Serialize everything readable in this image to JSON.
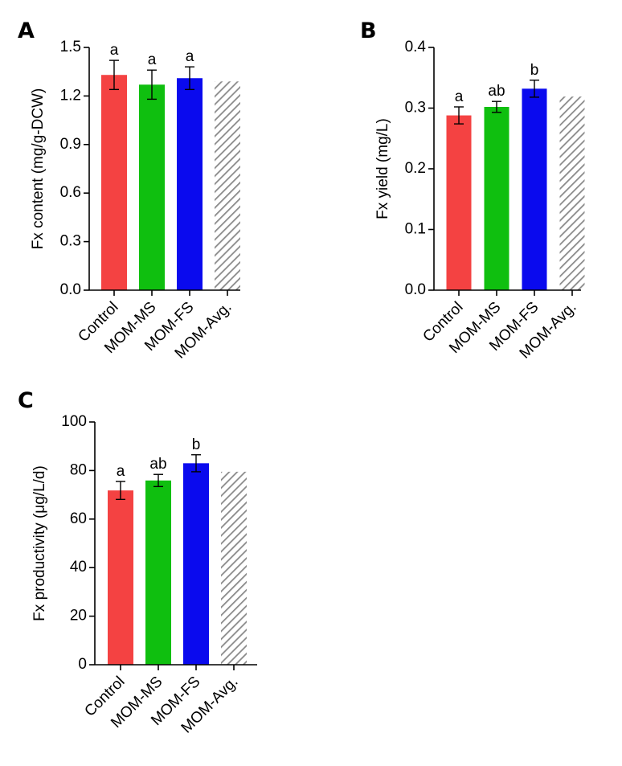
{
  "colors": {
    "control": "#f44242",
    "mom_ms": "#0fbf0f",
    "mom_fs": "#0a0aee",
    "mom_avg_hatch": "#8a8a8a",
    "axis": "#000000"
  },
  "chart_data": [
    {
      "panel": "A",
      "type": "bar",
      "ylabel": "Fx content (mg/g-DCW)",
      "xlabel": "",
      "ylim": [
        0,
        1.5
      ],
      "yticks": [
        "0.0",
        "0.3",
        "0.6",
        "0.9",
        "1.2",
        "1.5"
      ],
      "categories": [
        "Control",
        "MOM-MS",
        "MOM-FS",
        "MOM-Avg."
      ],
      "values": [
        1.33,
        1.27,
        1.31,
        1.29
      ],
      "errors": [
        0.09,
        0.09,
        0.07,
        null
      ],
      "significance": [
        "a",
        "a",
        "a",
        ""
      ],
      "hatched": [
        false,
        false,
        false,
        true
      ]
    },
    {
      "panel": "B",
      "type": "bar",
      "ylabel": "Fx yield (mg/L)",
      "xlabel": "",
      "ylim": [
        0,
        0.4
      ],
      "yticks": [
        "0.0",
        "0.1",
        "0.2",
        "0.3",
        "0.4"
      ],
      "categories": [
        "Control",
        "MOM-MS",
        "MOM-FS",
        "MOM-Avg."
      ],
      "values": [
        0.288,
        0.302,
        0.332,
        0.319
      ],
      "errors": [
        0.014,
        0.009,
        0.014,
        null
      ],
      "significance": [
        "a",
        "ab",
        "b",
        ""
      ],
      "hatched": [
        false,
        false,
        false,
        true
      ]
    },
    {
      "panel": "C",
      "type": "bar",
      "ylabel": "Fx productivity (μg/L/d)",
      "xlabel": "",
      "ylim": [
        0,
        100
      ],
      "yticks": [
        "0",
        "20",
        "40",
        "60",
        "80",
        "100"
      ],
      "categories": [
        "Control",
        "MOM-MS",
        "MOM-FS",
        "MOM-Avg."
      ],
      "values": [
        71.8,
        75.9,
        83.0,
        79.5
      ],
      "errors": [
        3.7,
        2.5,
        3.5,
        null
      ],
      "significance": [
        "a",
        "ab",
        "b",
        ""
      ],
      "hatched": [
        false,
        false,
        false,
        true
      ]
    }
  ]
}
